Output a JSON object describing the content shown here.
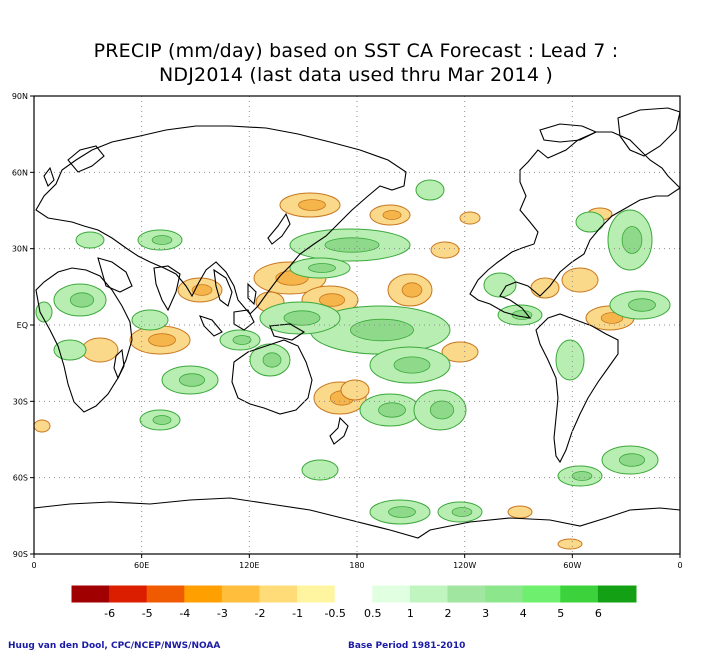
{
  "title": {
    "line1": "PRECIP (mm/day) based on SST CA Forecast : Lead 7 :",
    "line2": "NDJ2014 (last data used thru Mar 2014 )"
  },
  "axes": {
    "lat_labels": [
      "90N",
      "60N",
      "30N",
      "EQ",
      "30S",
      "60S",
      "90S"
    ],
    "lon_labels": [
      "0",
      "60E",
      "120E",
      "180",
      "120W",
      "60W",
      "0"
    ]
  },
  "legend": {
    "bins": [
      {
        "color": "#a00000"
      },
      {
        "color": "#dc1e00"
      },
      {
        "color": "#f05a00"
      },
      {
        "color": "#ffa000"
      },
      {
        "color": "#ffbe3c"
      },
      {
        "color": "#ffdc78"
      },
      {
        "color": "#fff5a0"
      },
      {
        "color": "#ffffff"
      },
      {
        "color": "#e1ffe1"
      },
      {
        "color": "#c0f5c0"
      },
      {
        "color": "#a0e6a0"
      },
      {
        "color": "#8ce68c"
      },
      {
        "color": "#6ef06e"
      },
      {
        "color": "#3cd23c"
      },
      {
        "color": "#14a014"
      }
    ],
    "labels": [
      "-6",
      "-5",
      "-4",
      "-3",
      "-2",
      "-1",
      "-0.5",
      "0.5",
      "1",
      "2",
      "3",
      "4",
      "5",
      "6"
    ]
  },
  "colors": {
    "dry_fill": "#fbd98a",
    "dry_strong": "#f5b54a",
    "wet_fill": "#b9eeb3",
    "wet_strong": "#8fd98a",
    "contour_dry": "#c8761e",
    "contour_wet": "#3aa83a",
    "coast": "#000000",
    "grid": "#8c8c8c"
  },
  "credits": {
    "left": "Huug van den Dool, CPC/NCEP/NWS/NOAA",
    "right": "Base Period 1981-2010"
  }
}
